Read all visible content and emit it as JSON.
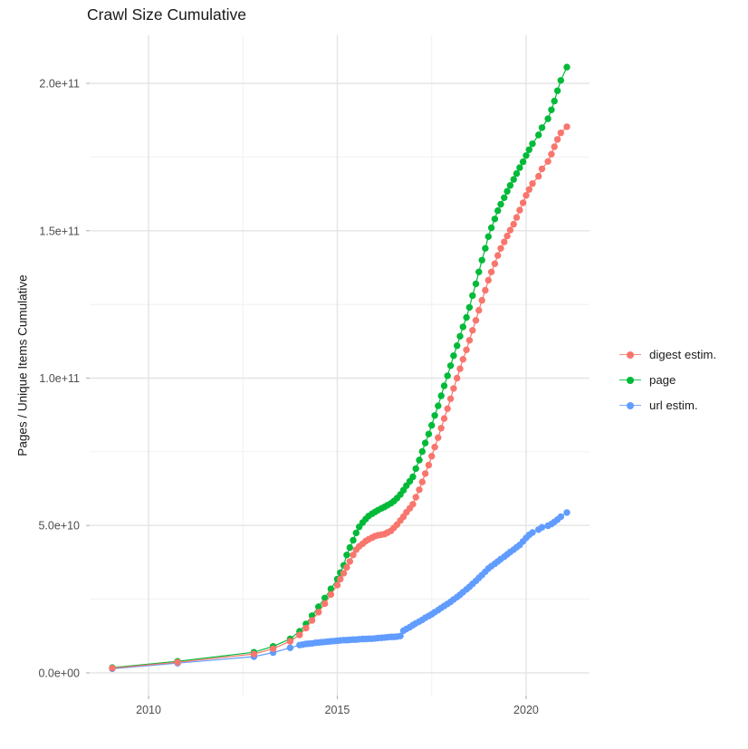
{
  "title": "Crawl Size Cumulative",
  "chart_data": {
    "type": "line",
    "title": "Crawl Size Cumulative",
    "xlabel": "",
    "ylabel": "Pages / Unique Items Cumulative",
    "grid": true,
    "legend_position": "right",
    "x_ticks": [
      2010,
      2015,
      2020
    ],
    "x_tick_labels": [
      "2010",
      "2015",
      "2020"
    ],
    "x_minor_ticks": [
      2012.5,
      2017.5
    ],
    "y_ticks_e9": [
      0,
      50,
      100,
      150,
      200
    ],
    "y_tick_labels": [
      "0.0e+00",
      "5.0e+10",
      "1.0e+11",
      "1.5e+11",
      "2.0e+11"
    ],
    "y_minor_ticks_e9": [
      25,
      75,
      125,
      175
    ],
    "xlim": [
      2008.44,
      2021.68
    ],
    "ylim_e9": [
      -7.7,
      216.3
    ],
    "units": "values in billions (1e9) of pages / unique items",
    "draw_order": [
      2,
      1,
      0
    ],
    "series": [
      {
        "name": "digest estim.",
        "color": "#F8766D",
        "points": [
          [
            2009.04,
            1.6
          ],
          [
            2010.77,
            3.6
          ],
          [
            2012.79,
            6.4
          ],
          [
            2013.3,
            8.2
          ],
          [
            2013.75,
            10.7
          ],
          [
            2014.0,
            12.9
          ],
          [
            2014.17,
            15.2
          ],
          [
            2014.33,
            17.8
          ],
          [
            2014.5,
            20.6
          ],
          [
            2014.67,
            23.5
          ],
          [
            2014.83,
            26.6
          ],
          [
            2015.0,
            29.8
          ],
          [
            2015.08,
            31.8
          ],
          [
            2015.17,
            33.8
          ],
          [
            2015.25,
            35.8
          ],
          [
            2015.33,
            37.8
          ],
          [
            2015.42,
            40.0
          ],
          [
            2015.5,
            41.8
          ],
          [
            2015.58,
            42.9
          ],
          [
            2015.67,
            43.8
          ],
          [
            2015.75,
            44.7
          ],
          [
            2015.83,
            45.3
          ],
          [
            2015.92,
            45.9
          ],
          [
            2016.0,
            46.4
          ],
          [
            2016.08,
            46.7
          ],
          [
            2016.17,
            46.9
          ],
          [
            2016.25,
            47.1
          ],
          [
            2016.33,
            47.6
          ],
          [
            2016.42,
            48.2
          ],
          [
            2016.5,
            49.2
          ],
          [
            2016.58,
            50.3
          ],
          [
            2016.67,
            51.7
          ],
          [
            2016.75,
            53.0
          ],
          [
            2016.83,
            54.5
          ],
          [
            2016.92,
            55.8
          ],
          [
            2017.0,
            57.2
          ],
          [
            2017.08,
            59.6
          ],
          [
            2017.17,
            62.1
          ],
          [
            2017.25,
            64.8
          ],
          [
            2017.33,
            67.6
          ],
          [
            2017.42,
            70.5
          ],
          [
            2017.5,
            73.5
          ],
          [
            2017.58,
            76.6
          ],
          [
            2017.67,
            79.8
          ],
          [
            2017.75,
            83.0
          ],
          [
            2017.83,
            86.3
          ],
          [
            2017.92,
            89.6
          ],
          [
            2018.0,
            93.0
          ],
          [
            2018.08,
            96.5
          ],
          [
            2018.17,
            100.0
          ],
          [
            2018.25,
            103.2
          ],
          [
            2018.33,
            106.4
          ],
          [
            2018.42,
            109.6
          ],
          [
            2018.5,
            112.8
          ],
          [
            2018.58,
            116.2
          ],
          [
            2018.67,
            119.6
          ],
          [
            2018.75,
            123.0
          ],
          [
            2018.83,
            126.4
          ],
          [
            2018.92,
            129.8
          ],
          [
            2019.0,
            133.2
          ],
          [
            2019.08,
            136.0
          ],
          [
            2019.17,
            138.8
          ],
          [
            2019.25,
            141.6
          ],
          [
            2019.33,
            144.0
          ],
          [
            2019.42,
            146.2
          ],
          [
            2019.5,
            148.2
          ],
          [
            2019.58,
            150.2
          ],
          [
            2019.67,
            152.2
          ],
          [
            2019.75,
            154.5
          ],
          [
            2019.83,
            157.0
          ],
          [
            2019.92,
            159.5
          ],
          [
            2020.0,
            162.0
          ],
          [
            2020.08,
            164.0
          ],
          [
            2020.17,
            166.0
          ],
          [
            2020.33,
            168.5
          ],
          [
            2020.42,
            171.0
          ],
          [
            2020.58,
            173.5
          ],
          [
            2020.67,
            176.0
          ],
          [
            2020.75,
            178.5
          ],
          [
            2020.83,
            181.0
          ],
          [
            2020.92,
            183.2
          ],
          [
            2021.08,
            185.3
          ]
        ]
      },
      {
        "name": "page",
        "color": "#00BA38",
        "points": [
          [
            2009.04,
            1.8
          ],
          [
            2010.77,
            3.9
          ],
          [
            2012.79,
            7.0
          ],
          [
            2013.3,
            9.0
          ],
          [
            2013.75,
            11.5
          ],
          [
            2014.0,
            14.1
          ],
          [
            2014.17,
            16.6
          ],
          [
            2014.33,
            19.4
          ],
          [
            2014.5,
            22.4
          ],
          [
            2014.67,
            25.4
          ],
          [
            2014.83,
            28.5
          ],
          [
            2015.0,
            31.8
          ],
          [
            2015.08,
            34.0
          ],
          [
            2015.17,
            36.5
          ],
          [
            2015.25,
            40.0
          ],
          [
            2015.33,
            42.5
          ],
          [
            2015.42,
            45.0
          ],
          [
            2015.5,
            47.5
          ],
          [
            2015.58,
            49.5
          ],
          [
            2015.67,
            51.0
          ],
          [
            2015.75,
            52.2
          ],
          [
            2015.83,
            53.2
          ],
          [
            2015.92,
            54.0
          ],
          [
            2016.0,
            54.6
          ],
          [
            2016.08,
            55.2
          ],
          [
            2016.17,
            55.8
          ],
          [
            2016.25,
            56.3
          ],
          [
            2016.33,
            56.9
          ],
          [
            2016.42,
            57.5
          ],
          [
            2016.5,
            58.3
          ],
          [
            2016.58,
            59.3
          ],
          [
            2016.67,
            60.5
          ],
          [
            2016.75,
            62.0
          ],
          [
            2016.83,
            63.5
          ],
          [
            2016.92,
            65.0
          ],
          [
            2017.0,
            66.5
          ],
          [
            2017.08,
            69.3
          ],
          [
            2017.17,
            72.2
          ],
          [
            2017.25,
            75.1
          ],
          [
            2017.33,
            78.0
          ],
          [
            2017.42,
            81.0
          ],
          [
            2017.5,
            84.0
          ],
          [
            2017.58,
            87.3
          ],
          [
            2017.67,
            90.6
          ],
          [
            2017.75,
            94.0
          ],
          [
            2017.83,
            97.4
          ],
          [
            2017.92,
            100.8
          ],
          [
            2018.0,
            104.2
          ],
          [
            2018.08,
            107.6
          ],
          [
            2018.17,
            111.0
          ],
          [
            2018.25,
            114.2
          ],
          [
            2018.33,
            117.4
          ],
          [
            2018.42,
            120.6
          ],
          [
            2018.5,
            124.0
          ],
          [
            2018.58,
            128.0
          ],
          [
            2018.67,
            132.0
          ],
          [
            2018.75,
            136.0
          ],
          [
            2018.83,
            140.0
          ],
          [
            2018.92,
            144.0
          ],
          [
            2019.0,
            148.0
          ],
          [
            2019.08,
            151.0
          ],
          [
            2019.17,
            154.0
          ],
          [
            2019.25,
            156.8
          ],
          [
            2019.33,
            159.0
          ],
          [
            2019.42,
            161.2
          ],
          [
            2019.5,
            163.4
          ],
          [
            2019.58,
            165.4
          ],
          [
            2019.67,
            167.4
          ],
          [
            2019.75,
            169.4
          ],
          [
            2019.83,
            171.4
          ],
          [
            2019.92,
            173.4
          ],
          [
            2020.0,
            175.5
          ],
          [
            2020.08,
            177.5
          ],
          [
            2020.17,
            179.5
          ],
          [
            2020.33,
            182.5
          ],
          [
            2020.42,
            185.0
          ],
          [
            2020.58,
            188.0
          ],
          [
            2020.67,
            191.0
          ],
          [
            2020.75,
            194.0
          ],
          [
            2020.83,
            197.5
          ],
          [
            2020.92,
            201.0
          ],
          [
            2021.08,
            205.5
          ]
        ]
      },
      {
        "name": "url estim.",
        "color": "#619CFF",
        "points": [
          [
            2009.04,
            1.4
          ],
          [
            2010.77,
            3.3
          ],
          [
            2012.79,
            5.5
          ],
          [
            2013.3,
            6.9
          ],
          [
            2013.75,
            8.5
          ],
          [
            2014.0,
            9.4
          ],
          [
            2014.08,
            9.6
          ],
          [
            2014.17,
            9.8
          ],
          [
            2014.25,
            9.9
          ],
          [
            2014.33,
            10.0
          ],
          [
            2014.42,
            10.2
          ],
          [
            2014.5,
            10.3
          ],
          [
            2014.58,
            10.4
          ],
          [
            2014.67,
            10.5
          ],
          [
            2014.75,
            10.6
          ],
          [
            2014.83,
            10.7
          ],
          [
            2014.92,
            10.8
          ],
          [
            2015.0,
            10.9
          ],
          [
            2015.08,
            11.0
          ],
          [
            2015.17,
            11.1
          ],
          [
            2015.25,
            11.1
          ],
          [
            2015.33,
            11.2
          ],
          [
            2015.42,
            11.3
          ],
          [
            2015.5,
            11.3
          ],
          [
            2015.58,
            11.4
          ],
          [
            2015.67,
            11.5
          ],
          [
            2015.75,
            11.5
          ],
          [
            2015.83,
            11.6
          ],
          [
            2015.92,
            11.6
          ],
          [
            2016.0,
            11.7
          ],
          [
            2016.08,
            11.8
          ],
          [
            2016.17,
            11.9
          ],
          [
            2016.25,
            12.0
          ],
          [
            2016.33,
            12.1
          ],
          [
            2016.42,
            12.2
          ],
          [
            2016.5,
            12.2
          ],
          [
            2016.58,
            12.3
          ],
          [
            2016.67,
            12.5
          ],
          [
            2016.75,
            14.3
          ],
          [
            2016.83,
            14.9
          ],
          [
            2016.92,
            15.5
          ],
          [
            2017.0,
            16.2
          ],
          [
            2017.08,
            16.8
          ],
          [
            2017.17,
            17.4
          ],
          [
            2017.25,
            18.0
          ],
          [
            2017.33,
            18.7
          ],
          [
            2017.42,
            19.3
          ],
          [
            2017.5,
            19.9
          ],
          [
            2017.58,
            20.6
          ],
          [
            2017.67,
            21.3
          ],
          [
            2017.75,
            22.0
          ],
          [
            2017.83,
            22.7
          ],
          [
            2017.92,
            23.4
          ],
          [
            2018.0,
            24.1
          ],
          [
            2018.08,
            24.9
          ],
          [
            2018.17,
            25.7
          ],
          [
            2018.25,
            26.5
          ],
          [
            2018.33,
            27.4
          ],
          [
            2018.42,
            28.3
          ],
          [
            2018.5,
            29.2
          ],
          [
            2018.58,
            30.2
          ],
          [
            2018.67,
            31.2
          ],
          [
            2018.75,
            32.2
          ],
          [
            2018.83,
            33.2
          ],
          [
            2018.92,
            34.3
          ],
          [
            2019.0,
            35.4
          ],
          [
            2019.08,
            36.2
          ],
          [
            2019.17,
            37.0
          ],
          [
            2019.25,
            37.8
          ],
          [
            2019.33,
            38.6
          ],
          [
            2019.42,
            39.4
          ],
          [
            2019.5,
            40.2
          ],
          [
            2019.58,
            41.0
          ],
          [
            2019.67,
            41.8
          ],
          [
            2019.75,
            42.6
          ],
          [
            2019.83,
            43.4
          ],
          [
            2019.92,
            44.6
          ],
          [
            2020.0,
            45.8
          ],
          [
            2020.08,
            46.8
          ],
          [
            2020.17,
            47.6
          ],
          [
            2020.33,
            48.6
          ],
          [
            2020.42,
            49.4
          ],
          [
            2020.58,
            49.9
          ],
          [
            2020.67,
            50.5
          ],
          [
            2020.75,
            51.2
          ],
          [
            2020.83,
            52.0
          ],
          [
            2020.92,
            53.0
          ],
          [
            2021.08,
            54.4
          ]
        ]
      }
    ]
  },
  "legend": {
    "items": [
      {
        "label": "digest estim.",
        "color": "#F8766D"
      },
      {
        "label": "page",
        "color": "#00BA38"
      },
      {
        "label": "url estim.",
        "color": "#619CFF"
      }
    ]
  },
  "style": {
    "grid_major_color": "#E4E4E4",
    "grid_minor_color": "#EFEFEF",
    "tick_color": "#B3B3B3",
    "tick_label_color": "#4D4D4D",
    "background": "#FFFFFF"
  }
}
